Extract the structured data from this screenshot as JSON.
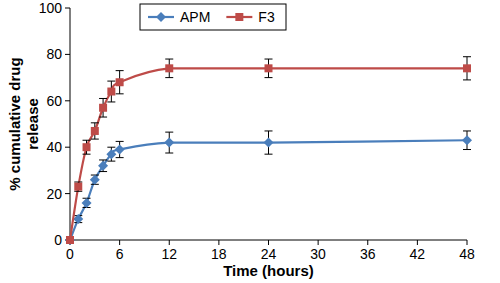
{
  "chart_data": {
    "type": "line",
    "x_label": "Time (hours)",
    "y_label": "% cumulative drug release",
    "x": [
      0,
      1,
      2,
      3,
      4,
      5,
      6,
      12,
      24,
      48
    ],
    "series": [
      {
        "name": "APM",
        "color": "#4a7ebb",
        "marker": "diamond",
        "values": [
          0,
          9,
          16,
          26,
          32,
          37,
          39,
          42,
          42,
          43
        ],
        "errors": [
          0,
          1.5,
          2,
          2,
          2.5,
          3,
          3.5,
          4.5,
          5,
          4
        ]
      },
      {
        "name": "F3",
        "color": "#be4b48",
        "marker": "square",
        "values": [
          0,
          23,
          40,
          47,
          57,
          64,
          68,
          74,
          74,
          74
        ],
        "errors": [
          0,
          2,
          3,
          3.5,
          4,
          4.5,
          5,
          4,
          4,
          5
        ]
      }
    ],
    "xlim": [
      0,
      48
    ],
    "xticks": [
      0,
      6,
      12,
      18,
      24,
      30,
      36,
      42,
      48
    ],
    "ylim": [
      0,
      100
    ],
    "yticks": [
      0,
      20,
      40,
      60,
      80,
      100
    ],
    "grid": false,
    "legend": "top-left"
  }
}
